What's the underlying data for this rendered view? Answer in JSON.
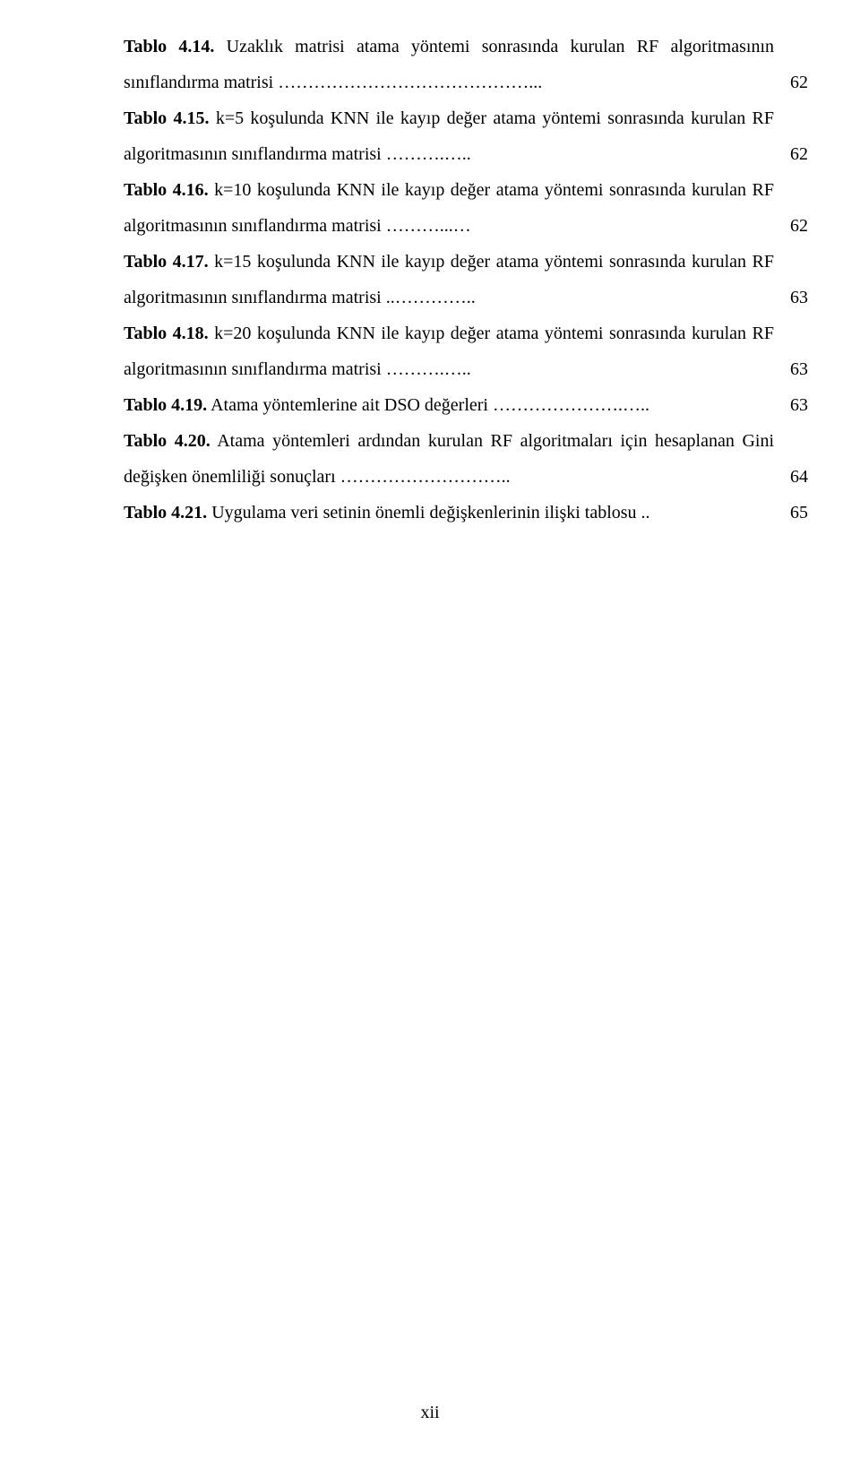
{
  "entries": [
    {
      "label": "Tablo 4.14.",
      "text": " Uzaklık matrisi atama yöntemi sonrasında kurulan RF algoritmasının sınıflandırma matrisi ……………………………………...",
      "page": "62"
    },
    {
      "label": "Tablo 4.15.",
      "text": " k=5 koşulunda KNN ile kayıp değer atama yöntemi sonrasında kurulan RF algoritmasının sınıflandırma matrisi ……….…..",
      "page": "62"
    },
    {
      "label": "Tablo 4.16.",
      "text": " k=10 koşulunda KNN ile kayıp değer atama yöntemi sonrasında kurulan RF algoritmasının sınıflandırma matrisi ………...…",
      "page": "62"
    },
    {
      "label": "Tablo 4.17.",
      "text": " k=15 koşulunda KNN ile kayıp değer atama yöntemi sonrasında kurulan RF algoritmasının sınıflandırma matrisi ..…………..",
      "page": "63"
    },
    {
      "label": "Tablo 4.18.",
      "text": " k=20 koşulunda KNN ile kayıp değer atama yöntemi sonrasında kurulan RF algoritmasının sınıflandırma matrisi ……….…..",
      "page": "63"
    },
    {
      "label": "Tablo 4.19.",
      "text": " Atama yöntemlerine ait DSO değerleri ………………….…..",
      "page": "63"
    },
    {
      "label": "Tablo 4.20.",
      "text": " Atama yöntemleri ardından kurulan RF algoritmaları için hesaplanan Gini değişken önemliliği sonuçları ………………………..",
      "page": "64"
    },
    {
      "label": "Tablo 4.21.",
      "text": " Uygulama veri setinin önemli değişkenlerinin ilişki tablosu ..",
      "page": "65"
    }
  ],
  "pageNumber": "xii"
}
